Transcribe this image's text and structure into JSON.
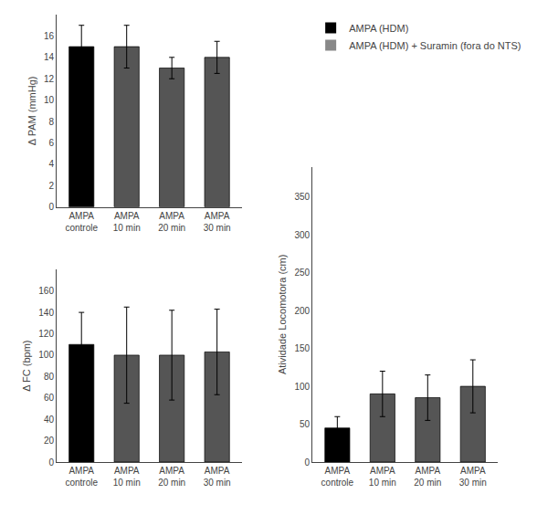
{
  "chart_data": [
    {
      "type": "bar",
      "categories": [
        "AMPA\ncontrole",
        "AMPA\n10 min",
        "AMPA\n20 min",
        "AMPA\n30 min"
      ],
      "values": [
        15.0,
        15.0,
        13.0,
        14.0
      ],
      "errors": [
        2.0,
        2.0,
        1.0,
        1.5
      ],
      "ylabel": "Δ PAM (mmHg)",
      "ylim": [
        0,
        18
      ],
      "yticks": [
        0,
        2,
        4,
        6,
        8,
        10,
        12,
        14,
        16
      ],
      "colors": [
        "#000000",
        "#555555",
        "#555555",
        "#555555"
      ],
      "grid": false
    },
    {
      "type": "bar",
      "categories": [
        "AMPA\ncontrole",
        "AMPA\n10 min",
        "AMPA\n20 min",
        "AMPA\n30 min"
      ],
      "values": [
        110.0,
        100.0,
        100.0,
        103.0
      ],
      "errors": [
        30.0,
        45.0,
        42.0,
        40.0
      ],
      "ylabel": "Δ FC (bpm)",
      "ylim": [
        0,
        180
      ],
      "yticks": [
        0,
        20,
        40,
        60,
        80,
        100,
        120,
        140,
        160
      ],
      "colors": [
        "#000000",
        "#555555",
        "#555555",
        "#555555"
      ],
      "grid": false
    },
    {
      "type": "bar",
      "categories": [
        "AMPA\ncontrole",
        "AMPA\n10 min",
        "AMPA\n20 min",
        "AMPA\n30 min"
      ],
      "values": [
        45.0,
        90.0,
        85.0,
        100.0
      ],
      "errors": [
        15.0,
        30.0,
        30.0,
        35.0
      ],
      "ylabel": "Atividade Locomotora (cm)",
      "ylim": [
        0,
        390
      ],
      "yticks": [
        0,
        50,
        100,
        150,
        200,
        250,
        300,
        350
      ],
      "colors": [
        "#000000",
        "#555555",
        "#555555",
        "#555555"
      ],
      "grid": false
    }
  ],
  "legend": "upper right",
  "series": [
    {
      "name": "AMPA (HDM)",
      "color": "#000000"
    },
    {
      "name": "AMPA (HDM) + Suramin (fora do NTS)",
      "color": "#888888"
    }
  ]
}
